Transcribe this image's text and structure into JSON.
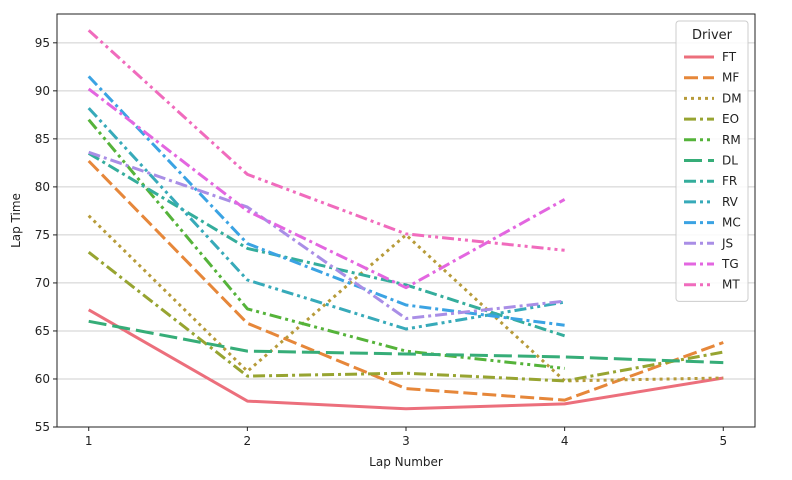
{
  "chart_data": {
    "type": "line",
    "xlabel": "Lap Number",
    "ylabel": "Lap Time",
    "x_ticks": [
      1,
      2,
      3,
      4,
      5
    ],
    "y_ticks": [
      55,
      60,
      65,
      70,
      75,
      80,
      85,
      90,
      95
    ],
    "xlim": [
      0.8,
      5.2
    ],
    "ylim": [
      55,
      98
    ],
    "grid": "horizontal",
    "legend": {
      "title": "Driver",
      "placement": "top-right"
    },
    "series": [
      {
        "name": "FT",
        "color": "#ec6f7c",
        "dash": "solid",
        "x": [
          1,
          2,
          3,
          4,
          5
        ],
        "values": [
          67.2,
          57.7,
          56.9,
          57.4,
          60.1
        ]
      },
      {
        "name": "MF",
        "color": "#e6873a",
        "dash": "dashed",
        "x": [
          1,
          2,
          3,
          4,
          5
        ],
        "values": [
          82.7,
          65.8,
          59.0,
          57.8,
          63.8
        ]
      },
      {
        "name": "DM",
        "color": "#b79b3a",
        "dash": "dotted",
        "x": [
          1,
          2,
          3,
          4,
          5
        ],
        "values": [
          77.0,
          60.8,
          75.0,
          59.8,
          60.1
        ]
      },
      {
        "name": "EO",
        "color": "#97a431",
        "dash": "dashdot",
        "x": [
          1,
          2,
          3,
          4,
          5
        ],
        "values": [
          73.2,
          60.3,
          60.6,
          59.8,
          62.8
        ]
      },
      {
        "name": "RM",
        "color": "#55b33a",
        "dash": "dashdotdot",
        "x": [
          1,
          2,
          3,
          4
        ],
        "values": [
          87.0,
          67.3,
          62.9,
          61.1
        ]
      },
      {
        "name": "DL",
        "color": "#36ad78",
        "dash": "longdash",
        "x": [
          1,
          2,
          3,
          4,
          5
        ],
        "values": [
          66.0,
          62.9,
          62.6,
          62.3,
          61.7
        ]
      },
      {
        "name": "FR",
        "color": "#34ad9c",
        "dash": "dashdot",
        "x": [
          1,
          2,
          3,
          4
        ],
        "values": [
          83.5,
          73.6,
          69.8,
          64.5
        ]
      },
      {
        "name": "RV",
        "color": "#37aab9",
        "dash": "dashdotdot",
        "x": [
          1,
          2,
          3,
          4
        ],
        "values": [
          88.2,
          70.3,
          65.2,
          68.0
        ]
      },
      {
        "name": "MC",
        "color": "#3ba3e3",
        "dash": "dashdot",
        "x": [
          1,
          2,
          3,
          4
        ],
        "values": [
          91.5,
          74.1,
          67.7,
          65.6
        ]
      },
      {
        "name": "JS",
        "color": "#a98ee6",
        "dash": "dashdot",
        "x": [
          1,
          2,
          3,
          4
        ],
        "values": [
          83.6,
          77.9,
          66.3,
          68.1
        ]
      },
      {
        "name": "TG",
        "color": "#e366e0",
        "dash": "dashdot",
        "x": [
          1,
          2,
          3,
          4
        ],
        "values": [
          90.2,
          77.5,
          69.5,
          78.7
        ]
      },
      {
        "name": "MT",
        "color": "#f06bbd",
        "dash": "dashdotdot",
        "x": [
          1,
          2,
          3,
          4
        ],
        "values": [
          96.3,
          81.3,
          75.1,
          73.4
        ]
      }
    ]
  }
}
